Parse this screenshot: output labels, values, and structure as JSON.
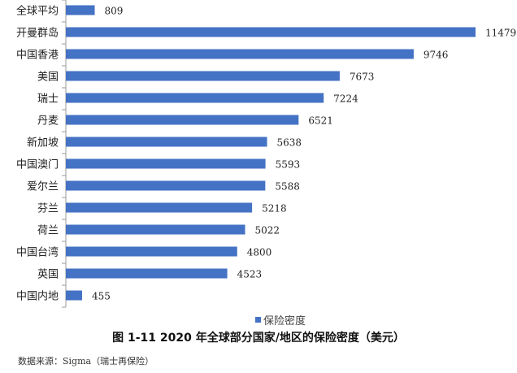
{
  "chart_data": {
    "type": "bar",
    "orientation": "horizontal",
    "title": "图 1-11 2020 年全球部分国家/地区的保险密度（美元）",
    "source": "数据来源：Sigma（瑞士再保险）",
    "legend": [
      "保险密度"
    ],
    "legend_position": "bottom",
    "categories": [
      "全球平均",
      "开曼群岛",
      "中国香港",
      "美国",
      "瑞士",
      "丹麦",
      "新加坡",
      "中国澳门",
      "爱尔兰",
      "芬兰",
      "荷兰",
      "中国台湾",
      "英国",
      "中国内地"
    ],
    "series": [
      {
        "name": "保险密度",
        "values": [
          809,
          11479,
          9746,
          7673,
          7224,
          6521,
          5638,
          5593,
          5588,
          5218,
          5022,
          4800,
          4523,
          455
        ]
      }
    ],
    "xlim": [
      0,
      11479
    ],
    "grid": false,
    "color": "#4472C4"
  }
}
